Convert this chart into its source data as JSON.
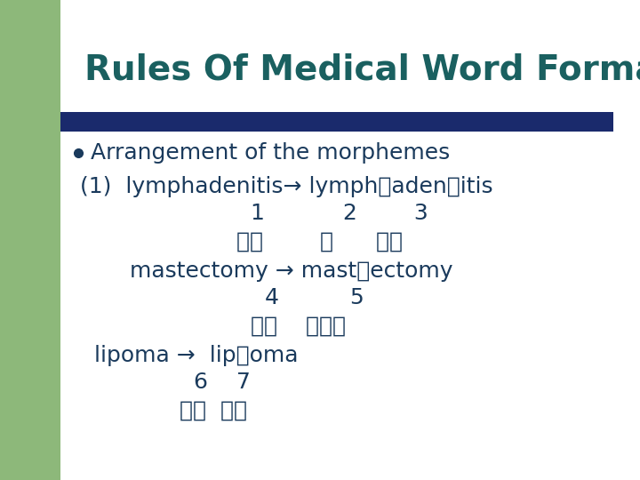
{
  "title": "Rules Of Medical Word Formation",
  "title_color": "#1a6060",
  "title_fontsize": 28,
  "bg_color": "#ffffff",
  "left_bar_color": "#8db87a",
  "divider_color": "#1a2a6c",
  "body_color": "#1a3a5c",
  "bullet_text": "Arrangement of the morphemes",
  "lines": [
    "(1)  lymphadenitis→ lymph＋aden＋itis",
    "                        1           2        3",
    "                      淡巴        腺      炎症",
    "       mastectomy → mast＋ectomy",
    "                          4          5",
    "                        乳房    切除术",
    "  lipoma →  lip＋oma",
    "                6    7",
    "              脂肿  肿瘠"
  ],
  "body_fontsize": 18,
  "line_positions": [
    330,
    300,
    268,
    235,
    205,
    173,
    140,
    110,
    78
  ]
}
